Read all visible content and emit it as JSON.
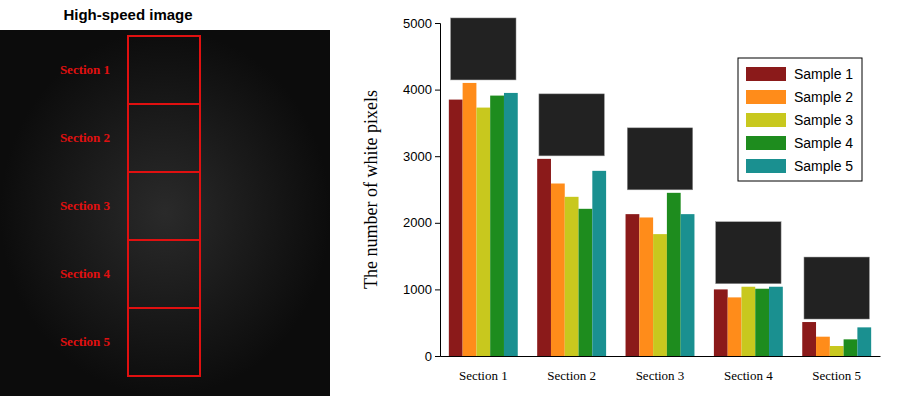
{
  "image": {
    "title": "High-speed image",
    "sections": [
      "Section 1",
      "Section 2",
      "Section 3",
      "Section 4",
      "Section 5"
    ]
  },
  "chart_data": {
    "type": "bar",
    "y_label": "The number of white pixels",
    "categories": [
      "Section 1",
      "Section 2",
      "Section 3",
      "Section 4",
      "Section 5"
    ],
    "series": [
      {
        "name": "Sample 1",
        "color": "#8b1a1a",
        "values": [
          3850,
          2960,
          2130,
          1000,
          510
        ]
      },
      {
        "name": "Sample 2",
        "color": "#ff8c1a",
        "values": [
          4100,
          2590,
          2080,
          880,
          290
        ]
      },
      {
        "name": "Sample 3",
        "color": "#c8c81e",
        "values": [
          3730,
          2390,
          1830,
          1040,
          150
        ]
      },
      {
        "name": "Sample 4",
        "color": "#1e8c1e",
        "values": [
          3910,
          2210,
          2450,
          1010,
          250
        ]
      },
      {
        "name": "Sample 5",
        "color": "#1a9090",
        "values": [
          3950,
          2780,
          2130,
          1040,
          430
        ]
      }
    ],
    "ylim": [
      0,
      5000
    ],
    "yticks": [
      0,
      1000,
      2000,
      3000,
      4000,
      5000
    ],
    "legend": "upper-right",
    "grid": false
  }
}
